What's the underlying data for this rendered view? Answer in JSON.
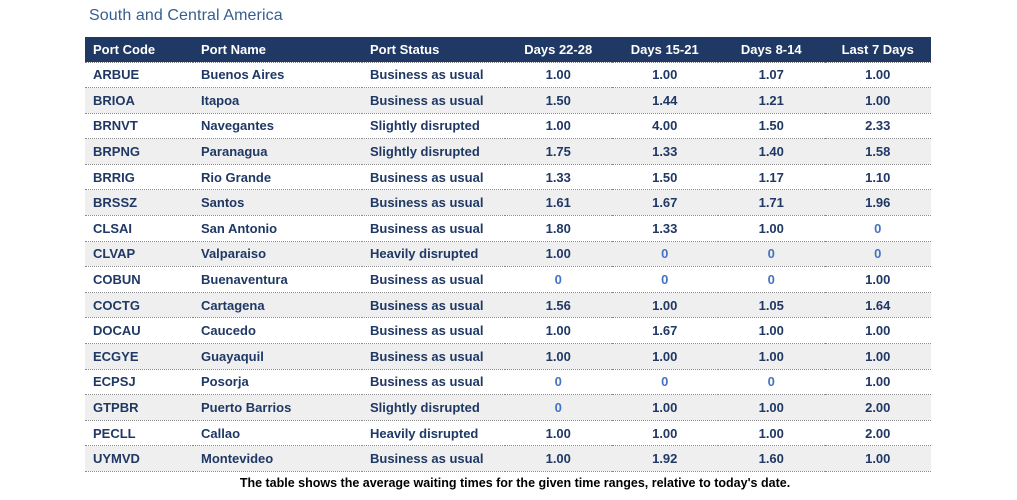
{
  "title": "South and Central America",
  "footnote": "The table shows the average waiting times for the given time ranges, relative to today's date.",
  "colors": {
    "header_bg": "#1F3864",
    "header_text": "#FFFFFF",
    "cell_text": "#1F3864",
    "zero_value_text": "#4472C4",
    "alt_row_bg": "#EFEFEF",
    "title_text": "#365F91",
    "row_divider": "#8A8A8A",
    "footnote_text": "#000000"
  },
  "chart_data": {
    "type": "table",
    "title": "South and Central America",
    "columns": [
      "Port Code",
      "Port Name",
      "Port Status",
      "Days 22-28",
      "Days 15-21",
      "Days 8-14",
      "Last 7 Days"
    ],
    "rows": [
      [
        "ARBUE",
        "Buenos Aires",
        "Business as usual",
        "1.00",
        "1.00",
        "1.07",
        "1.00"
      ],
      [
        "BRIOA",
        "Itapoa",
        "Business as usual",
        "1.50",
        "1.44",
        "1.21",
        "1.00"
      ],
      [
        "BRNVT",
        "Navegantes",
        "Slightly disrupted",
        "1.00",
        "4.00",
        "1.50",
        "2.33"
      ],
      [
        "BRPNG",
        "Paranagua",
        "Slightly disrupted",
        "1.75",
        "1.33",
        "1.40",
        "1.58"
      ],
      [
        "BRRIG",
        "Rio Grande",
        "Business as usual",
        "1.33",
        "1.50",
        "1.17",
        "1.10"
      ],
      [
        "BRSSZ",
        "Santos",
        "Business as usual",
        "1.61",
        "1.67",
        "1.71",
        "1.96"
      ],
      [
        "CLSAI",
        "San Antonio",
        "Business as usual",
        "1.80",
        "1.33",
        "1.00",
        "0"
      ],
      [
        "CLVAP",
        "Valparaiso",
        "Heavily disrupted",
        "1.00",
        "0",
        "0",
        "0"
      ],
      [
        "COBUN",
        "Buenaventura",
        "Business as usual",
        "0",
        "0",
        "0",
        "1.00"
      ],
      [
        "COCTG",
        "Cartagena",
        "Business as usual",
        "1.56",
        "1.00",
        "1.05",
        "1.64"
      ],
      [
        "DOCAU",
        "Caucedo",
        "Business as usual",
        "1.00",
        "1.67",
        "1.00",
        "1.00"
      ],
      [
        "ECGYE",
        "Guayaquil",
        "Business as usual",
        "1.00",
        "1.00",
        "1.00",
        "1.00"
      ],
      [
        "ECPSJ",
        "Posorja",
        "Business as usual",
        "0",
        "0",
        "0",
        "1.00"
      ],
      [
        "GTPBR",
        "Puerto Barrios",
        "Slightly disrupted",
        "0",
        "1.00",
        "1.00",
        "2.00"
      ],
      [
        "PECLL",
        "Callao",
        "Heavily disrupted",
        "1.00",
        "1.00",
        "1.00",
        "2.00"
      ],
      [
        "UYMVD",
        "Montevideo",
        "Business as usual",
        "1.00",
        "1.92",
        "1.60",
        "1.00"
      ]
    ]
  }
}
